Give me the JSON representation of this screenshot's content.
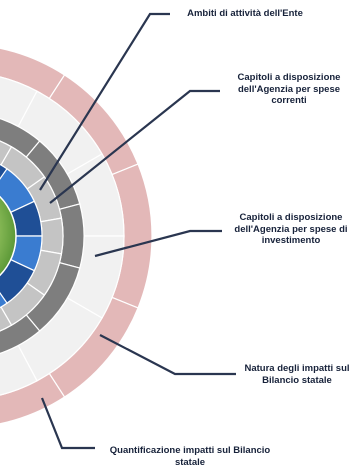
{
  "labels": {
    "ambiti": "Ambiti di attività dell'Ente",
    "capitoli_correnti": "Capitoli  a disposizione dell'Agenzia per spese correnti",
    "capitoli_investimento": "Capitoli a disposizione dell'Agenzia per spese di investimento",
    "natura": "Natura degli impatti sul Bilancio statale",
    "quantificazione": "Quantificazione impatti sul Bilancio statale"
  },
  "colors": {
    "core_inner": "#c9e9a0",
    "core_outer": "#4f8f2e",
    "blue_dark": "#1f4f96",
    "blue_light": "#3a7cd0",
    "ring_light_gray": "#c4c4c4",
    "ring_dark_gray": "#7e7e7e",
    "ring_white": "#f1f1f1",
    "ring_pink": "#e3b8b8",
    "separator": "#ffffff",
    "callout": "#2a3650",
    "text": "#17223a"
  },
  "rings": [
    {
      "name": "core",
      "color": "core"
    },
    {
      "name": "ambiti",
      "color": "blue"
    },
    {
      "name": "capitoli-correnti",
      "color": "ring_light_gray"
    },
    {
      "name": "capitoli-investimento",
      "color": "ring_dark_gray"
    },
    {
      "name": "natura-impatti",
      "color": "ring_white"
    },
    {
      "name": "quantificazione-impatti",
      "color": "ring_pink"
    }
  ]
}
